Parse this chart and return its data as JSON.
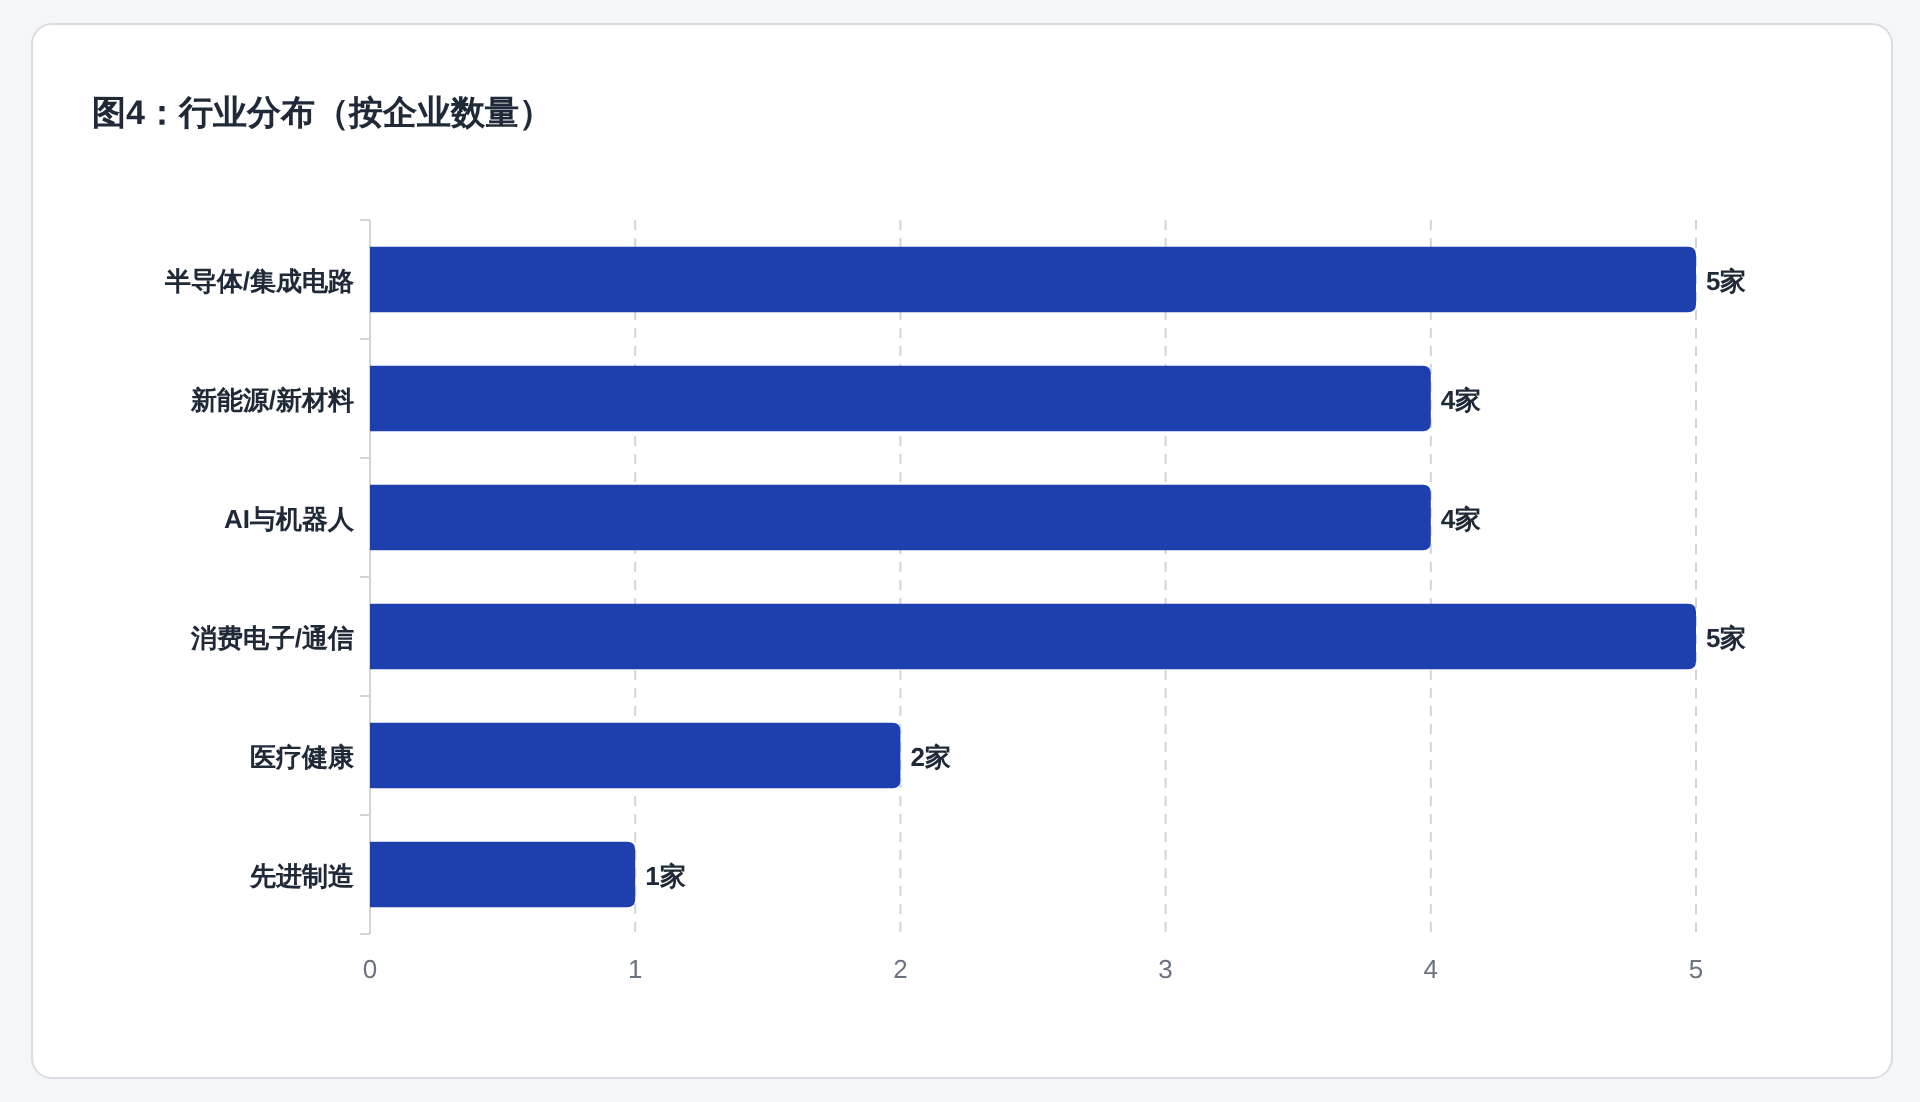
{
  "chart_data": {
    "type": "bar",
    "orientation": "horizontal",
    "title": "图4：行业分布（按企业数量）",
    "categories": [
      "半导体/集成电路",
      "新能源/新材料",
      "AI与机器人",
      "消费电子/通信",
      "医疗健康",
      "先进制造"
    ],
    "values": [
      5,
      4,
      4,
      5,
      2,
      1
    ],
    "value_labels": [
      "5家",
      "4家",
      "4家",
      "5家",
      "2家",
      "1家"
    ],
    "color": "#1e40af",
    "xlim": [
      0,
      5
    ],
    "xticks": [
      0,
      1,
      2,
      3,
      4,
      5
    ],
    "grid": "x"
  }
}
